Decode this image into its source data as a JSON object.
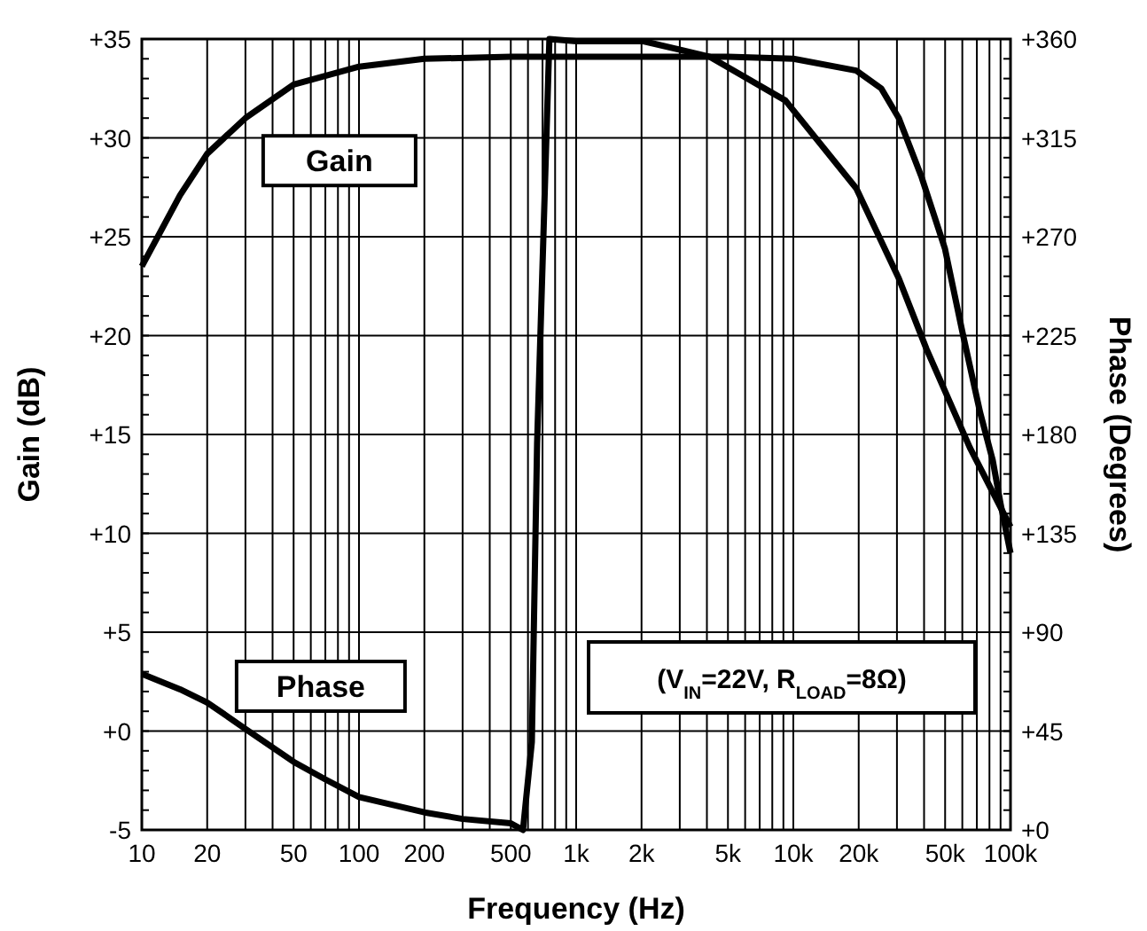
{
  "chart_data": {
    "type": "line",
    "xlabel": "Frequency  (Hz)",
    "ylabel": "Gain (dB)",
    "y2label": "Phase  (Degrees)",
    "log": "x",
    "grid": true,
    "line_style": "solid",
    "marker": "none",
    "xlim": [
      10,
      100000
    ],
    "xticks": [
      10,
      20,
      50,
      100,
      200,
      500,
      {
        "value": 1000,
        "label": "1k"
      },
      {
        "value": 2000,
        "label": "2k"
      },
      {
        "value": 5000,
        "label": "5k"
      },
      {
        "value": 10000,
        "label": "10k"
      },
      {
        "value": 20000,
        "label": "20k"
      },
      {
        "value": 50000,
        "label": "50k"
      },
      {
        "value": 100000,
        "label": "100k"
      }
    ],
    "ylim": [
      -5,
      35
    ],
    "yticks": [
      {
        "value": -5,
        "label": "-5"
      },
      {
        "value": 0,
        "label": "+0"
      },
      {
        "value": 5,
        "label": "+5"
      },
      {
        "value": 10,
        "label": "+10"
      },
      {
        "value": 15,
        "label": "+15"
      },
      {
        "value": 20,
        "label": "+20"
      },
      {
        "value": 25,
        "label": "+25"
      },
      {
        "value": 30,
        "label": "+30"
      },
      {
        "value": 35,
        "label": "+35"
      }
    ],
    "y2lim": [
      0,
      360
    ],
    "y2ticks": [
      {
        "value": 0,
        "label": "+0"
      },
      {
        "value": 45,
        "label": "+45"
      },
      {
        "value": 90,
        "label": "+90"
      },
      {
        "value": 135,
        "label": "+135"
      },
      {
        "value": 180,
        "label": "+180"
      },
      {
        "value": 225,
        "label": "+225"
      },
      {
        "value": 270,
        "label": "+270"
      },
      {
        "value": 315,
        "label": "+315"
      },
      {
        "value": 360,
        "label": "+360"
      }
    ],
    "series": [
      {
        "name": "Gain",
        "color": "#000000",
        "x": [
          10,
          15,
          20,
          30,
          50,
          100,
          200,
          500,
          1000,
          5000,
          10000,
          19500,
          25400,
          30600,
          39000,
          49900,
          60000,
          72500,
          82800,
          90000,
          100000
        ],
        "values": [
          23.5,
          27.1,
          29.2,
          31,
          32.7,
          33.6,
          34,
          34.1,
          34.1,
          34.1,
          34,
          33.4,
          32.5,
          31,
          28,
          24.4,
          20.2,
          16.1,
          13.7,
          11.5,
          9
        ]
      },
      {
        "name": "Phase",
        "color": "#000000",
        "axis": "y2",
        "x": [
          10,
          15,
          20,
          30,
          50,
          70,
          100,
          200,
          300,
          500,
          569,
          625,
          661,
          753,
          1000,
          2040,
          4100,
          9200,
          19500,
          30600,
          41000,
          65000,
          100000
        ],
        "values": [
          71,
          64,
          58,
          46,
          31,
          23,
          15,
          8,
          5,
          3,
          0,
          40,
          176,
          360,
          359,
          359,
          352,
          332,
          292,
          251,
          219,
          174,
          138
        ]
      }
    ],
    "annotations": [
      "(V$_{IN}$=22V, R$_{LOAD}$=8Ω)"
    ]
  }
}
